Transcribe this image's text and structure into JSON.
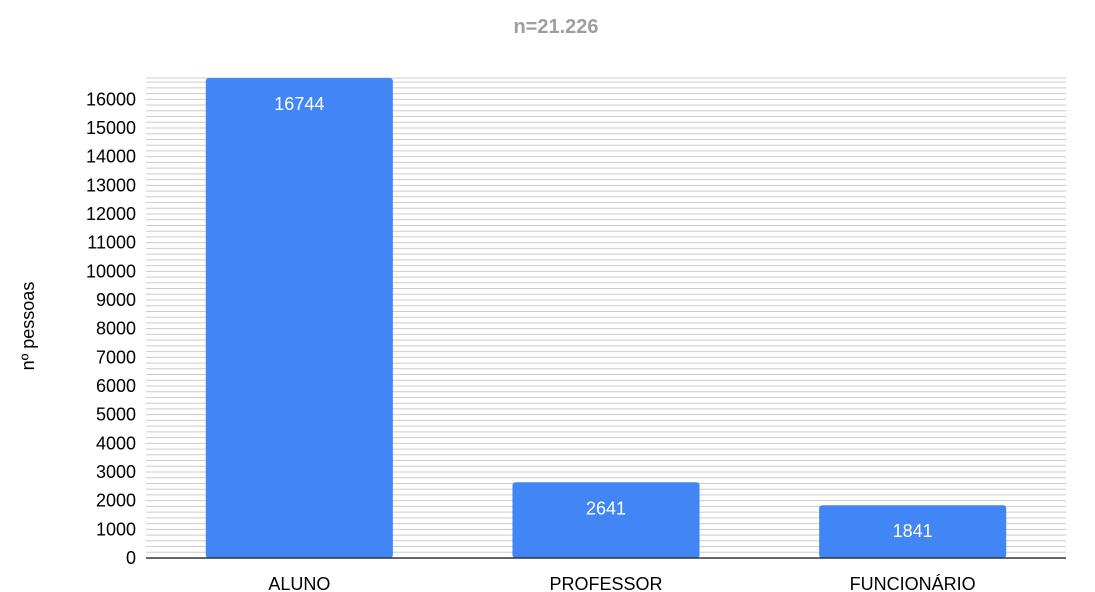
{
  "chart_data": {
    "type": "bar",
    "title": "n=21.226",
    "xlabel": "",
    "ylabel": "nº pessoas",
    "categories": [
      "ALUNO",
      "PROFESSOR",
      "FUNCIONÁRIO"
    ],
    "values": [
      16744,
      2641,
      1841
    ],
    "data_labels": [
      "16744",
      "2641",
      "1841"
    ],
    "ylim": [
      0,
      16744
    ],
    "yticks": [
      0,
      1000,
      2000,
      3000,
      4000,
      5000,
      6000,
      7000,
      8000,
      9000,
      10000,
      11000,
      12000,
      13000,
      14000,
      15000,
      16000
    ],
    "minor_gridlines": true,
    "legend": "none",
    "colors": {
      "bar": "#4285f4",
      "grid": "#cccccc",
      "axis": "#333333",
      "title": "#9e9e9e"
    }
  }
}
